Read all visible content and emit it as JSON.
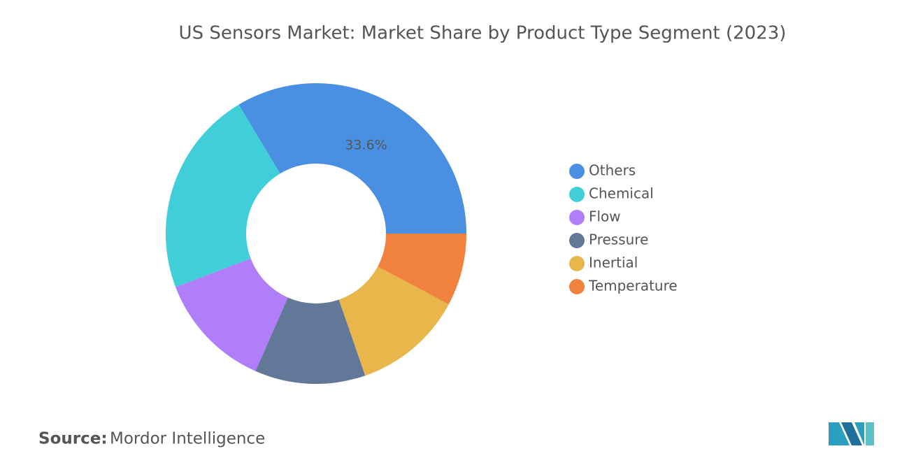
{
  "chart_data": {
    "type": "donut",
    "title": "US Sensors Market: Market Share by Product Type Segment (2023)",
    "categories": [
      "Others",
      "Chemical",
      "Flow",
      "Pressure",
      "Inertial",
      "Temperature"
    ],
    "values": [
      33.6,
      22.2,
      12.6,
      11.9,
      11.9,
      7.8
    ],
    "value_labels": [
      "33.6%",
      null,
      null,
      null,
      null,
      null
    ],
    "colors": [
      "#4a90e2",
      "#40cfd8",
      "#b07ef8",
      "#627898",
      "#e8b64b",
      "#f0823e"
    ],
    "legend": "right"
  },
  "footer": {
    "source_label": "Source:",
    "source": "Mordor Intelligence"
  }
}
